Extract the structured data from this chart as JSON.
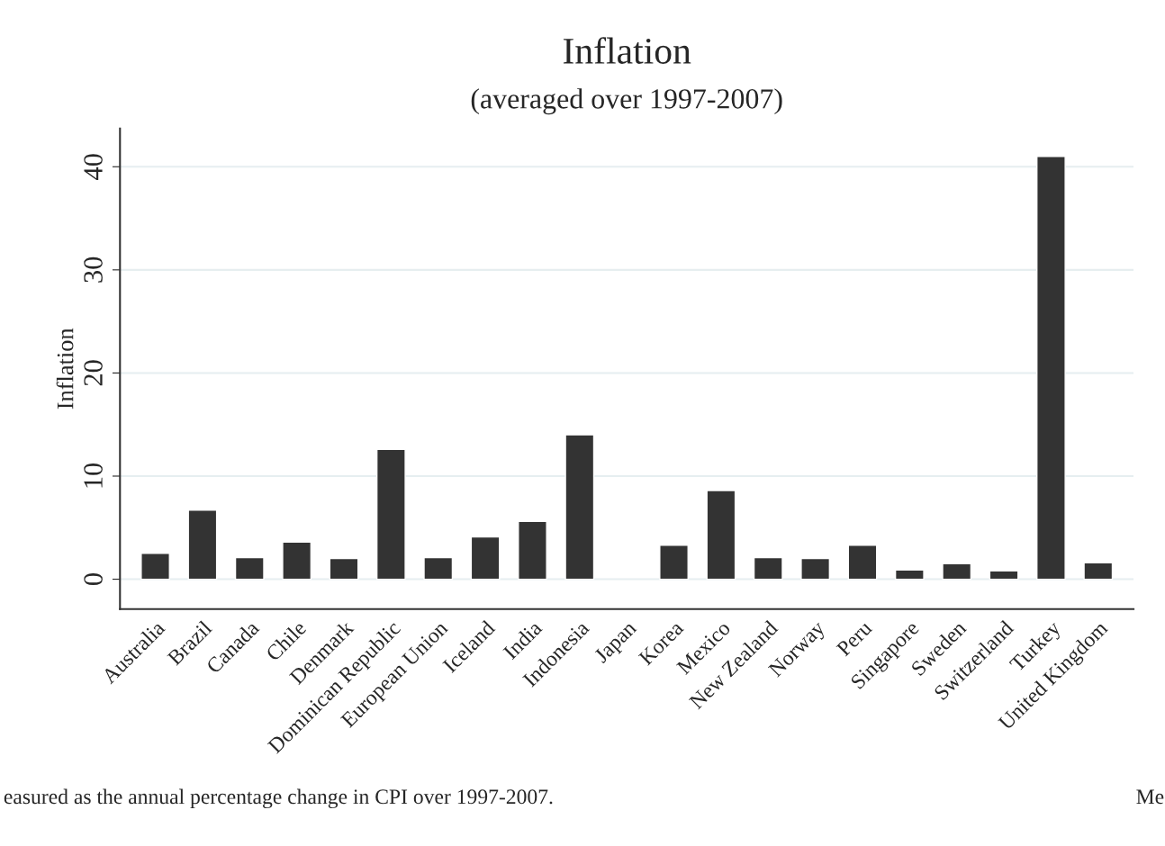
{
  "chart_data": {
    "type": "bar",
    "title": "Inflation",
    "subtitle": "(averaged over 1997-2007)",
    "ylabel": "Inflation",
    "categories": [
      "Australia",
      "Brazil",
      "Canada",
      "Chile",
      "Denmark",
      "Dominican Republic",
      "European Union",
      "Iceland",
      "India",
      "Indonesia",
      "Japan",
      "Korea",
      "Mexico",
      "New Zealand",
      "Norway",
      "Peru",
      "Singapore",
      "Sweden",
      "Switzerland",
      "Turkey",
      "United Kingdom"
    ],
    "values": [
      2.5,
      6.7,
      2.1,
      3.6,
      2.0,
      12.6,
      2.1,
      4.1,
      5.6,
      14.0,
      null,
      3.3,
      8.6,
      2.1,
      2.0,
      3.3,
      0.9,
      1.5,
      0.8,
      41.0,
      1.6
    ],
    "color": "#333333",
    "ylim": [
      -2.9,
      43.7
    ],
    "yticks": [
      0,
      10,
      20,
      30,
      40
    ],
    "grid": "y",
    "annotations": [
      "easured as the annual percentage change in CPI over 1997-2007.",
      "Me"
    ]
  }
}
